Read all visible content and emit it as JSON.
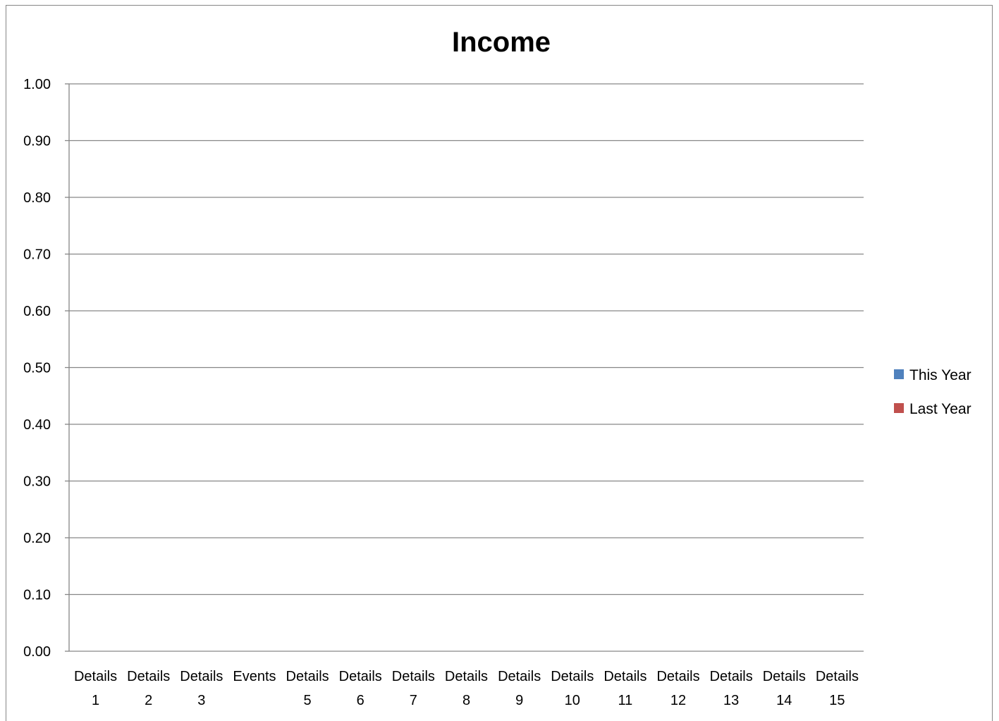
{
  "chart_data": {
    "type": "bar",
    "title": "Income",
    "xlabel": "",
    "ylabel": "",
    "ylim": [
      0,
      1
    ],
    "yticks": [
      "0.00",
      "0.10",
      "0.20",
      "0.30",
      "0.40",
      "0.50",
      "0.60",
      "0.70",
      "0.80",
      "0.90",
      "1.00"
    ],
    "categories": [
      [
        "Details",
        "1"
      ],
      [
        "Details",
        "2"
      ],
      [
        "Details",
        "3"
      ],
      [
        "Events",
        ""
      ],
      [
        "Details",
        "5"
      ],
      [
        "Details",
        "6"
      ],
      [
        "Details",
        "7"
      ],
      [
        "Details",
        "8"
      ],
      [
        "Details",
        "9"
      ],
      [
        "Details",
        "10"
      ],
      [
        "Details",
        "11"
      ],
      [
        "Details",
        "12"
      ],
      [
        "Details",
        "13"
      ],
      [
        "Details",
        "14"
      ],
      [
        "Details",
        "15"
      ]
    ],
    "series": [
      {
        "name": "This Year",
        "color": "#4F81BD",
        "values": [
          0,
          0,
          0,
          0,
          0,
          0,
          0,
          0,
          0,
          0,
          0,
          0,
          0,
          0,
          0
        ]
      },
      {
        "name": "Last Year",
        "color": "#C0504D",
        "values": [
          0,
          0,
          0,
          0,
          0,
          0,
          0,
          0,
          0,
          0,
          0,
          0,
          0,
          0,
          0
        ]
      }
    ],
    "grid": true,
    "legend_position": "right"
  }
}
